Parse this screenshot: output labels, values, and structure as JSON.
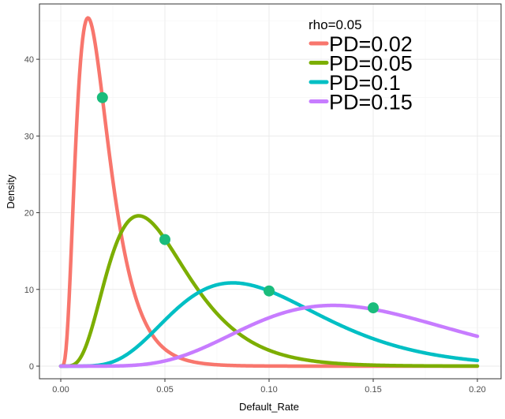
{
  "chart_data": {
    "type": "line",
    "xlabel": "Default_Rate",
    "ylabel": "Density",
    "xlim": [
      0,
      0.2
    ],
    "ylim": [
      0,
      45
    ],
    "x_ticks": [
      0.0,
      0.05,
      0.1,
      0.15,
      0.2
    ],
    "x_tick_labels": [
      "0.00",
      "0.05",
      "0.10",
      "0.15",
      "0.20"
    ],
    "y_ticks": [
      0,
      10,
      20,
      30,
      40
    ],
    "y_tick_labels": [
      "0",
      "10",
      "20",
      "30",
      "40"
    ],
    "grid": true,
    "legend": {
      "title": "rho=0.05",
      "position": "top-right"
    },
    "rho": 0.05,
    "series": [
      {
        "name": "PD=0.02",
        "pd": 0.02,
        "color": "#F8766D"
      },
      {
        "name": "PD=0.05",
        "pd": 0.05,
        "color": "#7CAE00"
      },
      {
        "name": "PD=0.1",
        "pd": 0.1,
        "color": "#00BFC4"
      },
      {
        "name": "PD=0.15",
        "pd": 0.15,
        "color": "#C77CFF"
      }
    ],
    "points": {
      "color": "#1ABC7C",
      "data": [
        {
          "x": 0.02,
          "y": 35
        },
        {
          "x": 0.05,
          "y": 16.5
        },
        {
          "x": 0.1,
          "y": 9.8
        },
        {
          "x": 0.15,
          "y": 7.6
        }
      ]
    }
  }
}
